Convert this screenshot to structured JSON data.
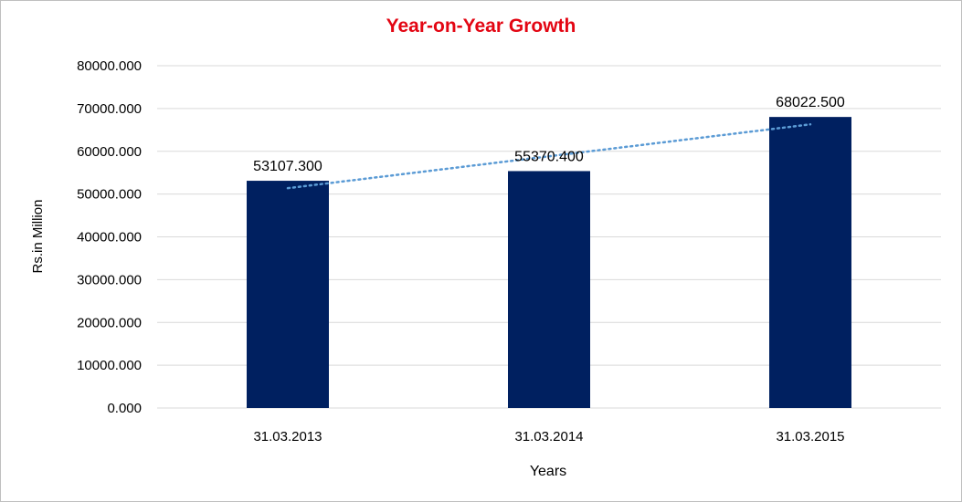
{
  "chart_data": {
    "type": "bar",
    "title": "Year-on-Year Growth",
    "xlabel": "Years",
    "ylabel": "Rs.in Million",
    "categories": [
      "31.03.2013",
      "31.03.2014",
      "31.03.2015"
    ],
    "values": [
      53107.3,
      55370.4,
      68022.5
    ],
    "data_labels": [
      "53107.300",
      "55370.400",
      "68022.500"
    ],
    "ylim": [
      0,
      80000
    ],
    "yticks": [
      "0.000",
      "10000.000",
      "20000.000",
      "30000.000",
      "40000.000",
      "50000.000",
      "60000.000",
      "70000.000",
      "80000.000"
    ],
    "trendline": "linear",
    "grid": true,
    "legend": "none",
    "colors": {
      "bar": "#002060",
      "trendline": "#5b9bd5",
      "title": "#e30613",
      "grid": "#d9d9d9"
    }
  }
}
